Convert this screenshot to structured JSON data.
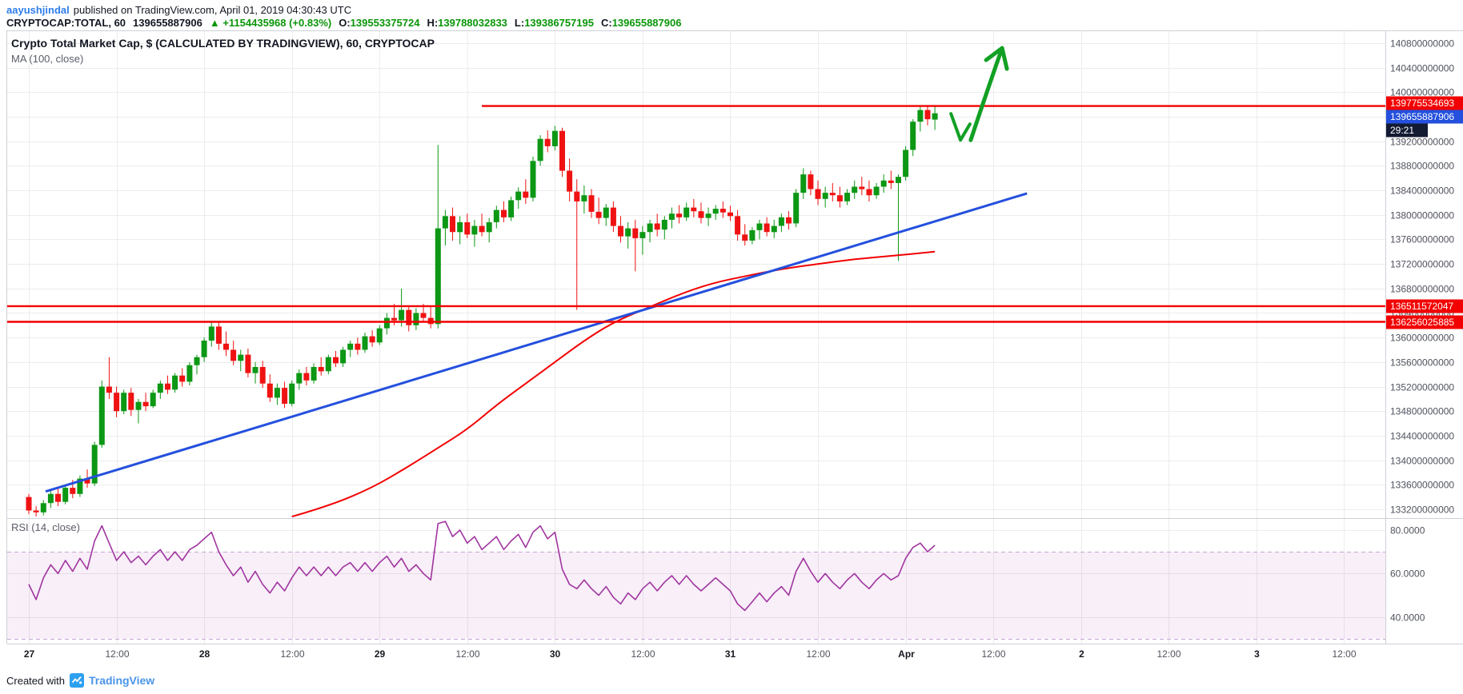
{
  "header": {
    "author": "aayushjindal",
    "byline": "published on TradingView.com, April 01, 2019 04:30:43 UTC",
    "symbol": "CRYPTOCAP:TOTAL, 60",
    "last_price": "139655887906",
    "change_arrow": "▲",
    "change": "+1154435968 (+0.83%)",
    "ohlc": {
      "o_label": "O:",
      "o": "139553375724",
      "h_label": "H:",
      "h": "139788032833",
      "l_label": "L:",
      "l": "139386757195",
      "c_label": "C:",
      "c": "139655887906"
    }
  },
  "legend": {
    "title": "Crypto Total Market Cap, $ (CALCULATED BY TRADINGVIEW), 60, CRYPTOCAP",
    "ma": "MA (100, close)",
    "rsi": "RSI (14, close)"
  },
  "watermark": {
    "created_with": "Created with",
    "brand": "TradingView"
  },
  "colors": {
    "up": "#0c9714",
    "down": "#ef1212",
    "ma": "#f20000",
    "hline": "#f20000",
    "trend": "#2450dd",
    "drawing": "#12a024",
    "rsi": "#a035a0",
    "rsi_band_fill": "rgba(160,53,160,0.08)",
    "rsi_band_line": "#c9a2d2",
    "grid": "#ececec",
    "border": "#cdd0d7",
    "axis_text": "#50535e",
    "axis_text_major": "#16181f",
    "countdown_bg": "#131b33",
    "tag_text": "#ffffff",
    "green_text": "#0a9609",
    "link": "#2e7de9",
    "brand": "#4a94e8"
  },
  "price_axis": {
    "ticks": [
      {
        "p": 140.8,
        "t": "140800000000"
      },
      {
        "p": 140.4,
        "t": "140400000000"
      },
      {
        "p": 140.0,
        "t": "140000000000"
      },
      {
        "p": 139.6,
        "t": "139600000000"
      },
      {
        "p": 139.2,
        "t": "139200000000"
      },
      {
        "p": 138.8,
        "t": "138800000000"
      },
      {
        "p": 138.4,
        "t": "138400000000"
      },
      {
        "p": 138.0,
        "t": "138000000000"
      },
      {
        "p": 137.6,
        "t": "137600000000"
      },
      {
        "p": 137.2,
        "t": "137200000000"
      },
      {
        "p": 136.8,
        "t": "136800000000"
      },
      {
        "p": 136.4,
        "t": "136400000000"
      },
      {
        "p": 136.0,
        "t": "136000000000"
      },
      {
        "p": 135.6,
        "t": "135600000000"
      },
      {
        "p": 135.2,
        "t": "135200000000"
      },
      {
        "p": 134.8,
        "t": "134800000000"
      },
      {
        "p": 134.4,
        "t": "134400000000"
      },
      {
        "p": 134.0,
        "t": "134000000000"
      },
      {
        "p": 133.6,
        "t": "133600000000"
      },
      {
        "p": 133.2,
        "t": "133200000000"
      }
    ]
  },
  "rsi_axis": {
    "ticks": [
      {
        "r": 80,
        "t": "80.0000"
      },
      {
        "r": 60,
        "t": "60.0000"
      },
      {
        "r": 40,
        "t": "40.0000"
      }
    ]
  },
  "time_axis": {
    "ticks": [
      {
        "i": 0,
        "label": "27",
        "major": true
      },
      {
        "i": 12,
        "label": "12:00",
        "major": false
      },
      {
        "i": 24,
        "label": "28",
        "major": true
      },
      {
        "i": 36,
        "label": "12:00",
        "major": false
      },
      {
        "i": 48,
        "label": "29",
        "major": true
      },
      {
        "i": 60,
        "label": "12:00",
        "major": false
      },
      {
        "i": 72,
        "label": "30",
        "major": true
      },
      {
        "i": 84,
        "label": "12:00",
        "major": false
      },
      {
        "i": 96,
        "label": "31",
        "major": true
      },
      {
        "i": 108,
        "label": "12:00",
        "major": false
      },
      {
        "i": 120,
        "label": "Apr",
        "major": true
      },
      {
        "i": 132,
        "label": "12:00",
        "major": false
      },
      {
        "i": 144,
        "label": "2",
        "major": true
      },
      {
        "i": 156,
        "label": "12:00",
        "major": false
      },
      {
        "i": 168,
        "label": "3",
        "major": true
      },
      {
        "i": 180,
        "label": "12:00",
        "major": false
      }
    ]
  },
  "chart_data": {
    "type": "candlestick",
    "title": "Crypto Total Market Cap, $ (CALCULATED BY TRADINGVIEW), 60, CRYPTOCAP",
    "interval": "60 (hourly candles)",
    "x_range": "Mar 27 2019 00:00 through Apr 1 2019 04:00, index 0-124, one candle per hour",
    "y_unit": "USD market cap, values stored in billions (multiply by 1e9)",
    "ylim_billions": [
      133.0,
      140.9
    ],
    "ohlc_last": {
      "open": "139553375724",
      "high": "139788032833",
      "low": "139386757195",
      "close": "139655887906",
      "change": "+1154435968 (+0.83%)"
    },
    "candles_ohlc_billions": [
      [
        133.4,
        133.45,
        133.12,
        133.18
      ],
      [
        133.18,
        133.25,
        133.08,
        133.15
      ],
      [
        133.15,
        133.35,
        133.1,
        133.3
      ],
      [
        133.3,
        133.5,
        133.22,
        133.45
      ],
      [
        133.45,
        133.55,
        133.25,
        133.32
      ],
      [
        133.32,
        133.6,
        133.28,
        133.55
      ],
      [
        133.55,
        133.68,
        133.38,
        133.45
      ],
      [
        133.45,
        133.75,
        133.4,
        133.7
      ],
      [
        133.7,
        133.85,
        133.55,
        133.62
      ],
      [
        133.62,
        134.3,
        133.58,
        134.25
      ],
      [
        134.25,
        135.3,
        134.2,
        135.2
      ],
      [
        135.2,
        135.68,
        135.0,
        135.1
      ],
      [
        135.1,
        135.2,
        134.7,
        134.8
      ],
      [
        134.8,
        135.15,
        134.75,
        135.1
      ],
      [
        135.1,
        135.18,
        134.72,
        134.82
      ],
      [
        134.82,
        135.0,
        134.6,
        134.95
      ],
      [
        134.95,
        135.1,
        134.8,
        134.88
      ],
      [
        134.88,
        135.15,
        134.85,
        135.1
      ],
      [
        135.1,
        135.3,
        135.0,
        135.25
      ],
      [
        135.25,
        135.38,
        135.08,
        135.15
      ],
      [
        135.15,
        135.42,
        135.1,
        135.38
      ],
      [
        135.38,
        135.5,
        135.2,
        135.28
      ],
      [
        135.28,
        135.6,
        135.22,
        135.55
      ],
      [
        135.55,
        135.72,
        135.4,
        135.68
      ],
      [
        135.68,
        136.0,
        135.6,
        135.95
      ],
      [
        135.95,
        136.26,
        135.85,
        136.18
      ],
      [
        136.18,
        136.25,
        135.8,
        135.9
      ],
      [
        135.9,
        136.1,
        135.7,
        135.8
      ],
      [
        135.8,
        135.95,
        135.55,
        135.62
      ],
      [
        135.62,
        135.8,
        135.45,
        135.72
      ],
      [
        135.72,
        135.82,
        135.35,
        135.42
      ],
      [
        135.42,
        135.6,
        135.25,
        135.52
      ],
      [
        135.52,
        135.62,
        135.18,
        135.25
      ],
      [
        135.25,
        135.4,
        134.95,
        135.02
      ],
      [
        135.02,
        135.25,
        134.9,
        135.18
      ],
      [
        135.18,
        135.28,
        134.85,
        134.92
      ],
      [
        134.92,
        135.3,
        134.88,
        135.25
      ],
      [
        135.25,
        135.48,
        135.15,
        135.42
      ],
      [
        135.42,
        135.52,
        135.22,
        135.3
      ],
      [
        135.3,
        135.58,
        135.25,
        135.52
      ],
      [
        135.52,
        135.68,
        135.38,
        135.45
      ],
      [
        135.45,
        135.72,
        135.4,
        135.68
      ],
      [
        135.68,
        135.78,
        135.52,
        135.58
      ],
      [
        135.58,
        135.85,
        135.52,
        135.8
      ],
      [
        135.8,
        135.95,
        135.68,
        135.9
      ],
      [
        135.9,
        136.0,
        135.72,
        135.8
      ],
      [
        135.8,
        136.08,
        135.75,
        136.02
      ],
      [
        136.02,
        136.12,
        135.85,
        135.92
      ],
      [
        135.92,
        136.2,
        135.88,
        136.15
      ],
      [
        136.15,
        136.4,
        136.05,
        136.32
      ],
      [
        136.32,
        136.55,
        136.2,
        136.28
      ],
      [
        136.28,
        136.8,
        136.18,
        136.45
      ],
      [
        136.45,
        136.52,
        136.1,
        136.2
      ],
      [
        136.2,
        136.48,
        136.12,
        136.4
      ],
      [
        136.4,
        136.55,
        136.25,
        136.32
      ],
      [
        136.32,
        136.5,
        136.15,
        136.22
      ],
      [
        136.22,
        139.14,
        136.15,
        137.78
      ],
      [
        137.78,
        138.08,
        137.5,
        137.98
      ],
      [
        137.98,
        138.12,
        137.58,
        137.72
      ],
      [
        137.72,
        137.98,
        137.52,
        137.88
      ],
      [
        137.88,
        138.02,
        137.62,
        137.68
      ],
      [
        137.68,
        137.92,
        137.48,
        137.82
      ],
      [
        137.82,
        138.02,
        137.65,
        137.72
      ],
      [
        137.72,
        137.95,
        137.55,
        137.88
      ],
      [
        137.88,
        138.15,
        137.78,
        138.08
      ],
      [
        138.08,
        138.22,
        137.88,
        137.96
      ],
      [
        137.96,
        138.3,
        137.9,
        138.24
      ],
      [
        138.24,
        138.45,
        138.1,
        138.38
      ],
      [
        138.38,
        138.58,
        138.18,
        138.28
      ],
      [
        138.28,
        138.95,
        138.22,
        138.88
      ],
      [
        138.88,
        139.3,
        138.8,
        139.24
      ],
      [
        139.24,
        139.38,
        139.02,
        139.12
      ],
      [
        139.12,
        139.45,
        139.05,
        139.37
      ],
      [
        139.37,
        139.42,
        138.62,
        138.72
      ],
      [
        138.72,
        138.92,
        138.22,
        138.38
      ],
      [
        138.38,
        138.58,
        136.45,
        138.22
      ],
      [
        138.22,
        138.48,
        138.02,
        138.32
      ],
      [
        138.32,
        138.42,
        137.95,
        138.05
      ],
      [
        138.05,
        138.28,
        137.85,
        137.95
      ],
      [
        137.95,
        138.18,
        137.82,
        138.12
      ],
      [
        138.12,
        138.22,
        137.72,
        137.82
      ],
      [
        137.82,
        137.98,
        137.55,
        137.65
      ],
      [
        137.65,
        137.88,
        137.45,
        137.78
      ],
      [
        137.78,
        137.92,
        137.08,
        137.62
      ],
      [
        137.62,
        137.82,
        137.35,
        137.72
      ],
      [
        137.72,
        137.92,
        137.55,
        137.86
      ],
      [
        137.86,
        138.02,
        137.65,
        137.76
      ],
      [
        137.76,
        137.98,
        137.6,
        137.92
      ],
      [
        137.92,
        138.12,
        137.78,
        138.02
      ],
      [
        138.02,
        138.16,
        137.86,
        137.96
      ],
      [
        137.96,
        138.2,
        137.9,
        138.12
      ],
      [
        138.12,
        138.26,
        137.96,
        138.06
      ],
      [
        138.06,
        138.2,
        137.86,
        137.95
      ],
      [
        137.95,
        138.12,
        137.82,
        138.02
      ],
      [
        138.02,
        138.16,
        137.92,
        138.1
      ],
      [
        138.1,
        138.22,
        137.95,
        138.04
      ],
      [
        138.04,
        138.15,
        137.9,
        137.98
      ],
      [
        137.98,
        138.08,
        137.58,
        137.68
      ],
      [
        137.68,
        137.85,
        137.5,
        137.58
      ],
      [
        137.58,
        137.8,
        137.52,
        137.75
      ],
      [
        137.75,
        137.92,
        137.6,
        137.86
      ],
      [
        137.86,
        137.96,
        137.65,
        137.72
      ],
      [
        137.72,
        137.92,
        137.62,
        137.82
      ],
      [
        137.82,
        138.02,
        137.72,
        137.96
      ],
      [
        137.96,
        138.06,
        137.76,
        137.86
      ],
      [
        137.86,
        138.42,
        137.8,
        138.36
      ],
      [
        138.36,
        138.76,
        138.26,
        138.66
      ],
      [
        138.66,
        138.72,
        138.32,
        138.42
      ],
      [
        138.42,
        138.56,
        138.16,
        138.26
      ],
      [
        138.26,
        138.46,
        138.12,
        138.36
      ],
      [
        138.36,
        138.52,
        138.22,
        138.32
      ],
      [
        138.32,
        138.46,
        138.12,
        138.22
      ],
      [
        138.22,
        138.42,
        138.16,
        138.36
      ],
      [
        138.36,
        138.56,
        138.26,
        138.46
      ],
      [
        138.46,
        138.62,
        138.32,
        138.42
      ],
      [
        138.42,
        138.56,
        138.22,
        138.32
      ],
      [
        138.32,
        138.52,
        138.26,
        138.46
      ],
      [
        138.46,
        138.66,
        138.36,
        138.56
      ],
      [
        138.56,
        138.72,
        138.42,
        138.52
      ],
      [
        138.52,
        138.66,
        137.25,
        138.62
      ],
      [
        138.62,
        139.12,
        138.56,
        139.06
      ],
      [
        139.06,
        139.56,
        138.96,
        139.52
      ],
      [
        139.52,
        139.76,
        139.36,
        139.71
      ],
      [
        139.71,
        139.79,
        139.46,
        139.56
      ],
      [
        139.553,
        139.788,
        139.387,
        139.656
      ]
    ],
    "ma100_points_idx_price": [
      [
        36,
        133.08
      ],
      [
        41,
        133.25
      ],
      [
        47,
        133.55
      ],
      [
        52,
        133.9
      ],
      [
        56,
        134.2
      ],
      [
        60,
        134.5
      ],
      [
        64,
        134.9
      ],
      [
        68,
        135.25
      ],
      [
        72,
        135.6
      ],
      [
        76,
        135.95
      ],
      [
        80,
        136.25
      ],
      [
        85,
        136.5
      ],
      [
        90,
        136.75
      ],
      [
        94,
        136.9
      ],
      [
        98,
        137.0
      ],
      [
        103,
        137.12
      ],
      [
        108,
        137.2
      ],
      [
        113,
        137.28
      ],
      [
        118,
        137.33
      ],
      [
        124,
        137.4
      ]
    ],
    "trendline_idx_price": {
      "from": [
        2.3,
        133.49
      ],
      "to": [
        136.6,
        138.35
      ]
    },
    "hlines": [
      {
        "price_label": "139775534693",
        "price": 139.775534693,
        "start_idx": 62
      },
      {
        "price_label": "136511572047",
        "price": 136.511572047,
        "start_idx": 0
      },
      {
        "price_label": "136256025885",
        "price": 136.256025885,
        "start_idx": 0
      }
    ],
    "rsi_14": [
      55,
      48,
      58,
      64,
      60,
      66,
      61,
      67,
      62,
      75,
      82,
      74,
      66,
      70,
      65,
      68,
      64,
      68,
      71,
      66,
      70,
      66,
      71,
      73,
      76,
      79,
      70,
      64,
      59,
      63,
      56,
      61,
      55,
      51,
      56,
      52,
      58,
      63,
      59,
      63,
      59,
      63,
      59,
      63,
      65,
      61,
      65,
      61,
      65,
      68,
      63,
      67,
      61,
      64,
      60,
      57,
      83,
      84,
      77,
      80,
      74,
      77,
      71,
      74,
      77,
      71,
      75,
      78,
      72,
      79,
      82,
      76,
      79,
      62,
      55,
      53,
      57,
      53,
      50,
      54,
      49,
      46,
      51,
      48,
      53,
      56,
      52,
      56,
      59,
      55,
      59,
      55,
      52,
      55,
      58,
      55,
      52,
      46,
      43,
      47,
      51,
      47,
      51,
      54,
      50,
      61,
      67,
      61,
      56,
      60,
      56,
      53,
      57,
      60,
      56,
      53,
      57,
      60,
      57,
      59,
      67,
      72,
      74,
      70,
      73
    ],
    "rsi_band": [
      30,
      70
    ],
    "drawings": {
      "check_idx_price": [
        [
          126.2,
          139.65
        ],
        [
          127.5,
          139.22
        ],
        [
          128.8,
          139.48
        ]
      ],
      "arrow_idx_price": [
        [
          128.9,
          139.22
        ],
        [
          130.8,
          139.9
        ],
        [
          133.2,
          140.72
        ]
      ]
    },
    "last_tag": {
      "price": "139655887906",
      "countdown": "29:21"
    }
  }
}
